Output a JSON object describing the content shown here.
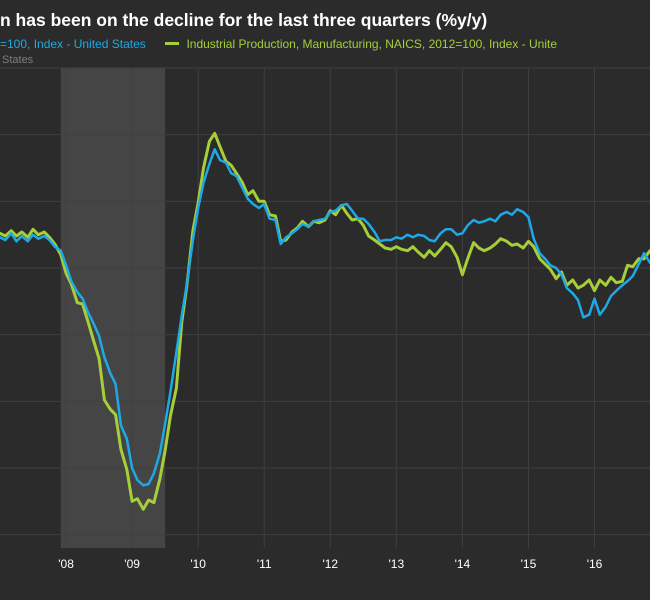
{
  "title": "n has been on the decline for the last three quarters (%y/y)",
  "legend": {
    "series1_label": "=100, Index - United States",
    "series2_label": "Industrial Production, Manufacturing, NAICS, 2012=100, Index - Unite",
    "series1_cont": "States"
  },
  "colors": {
    "background": "#2b2b2b",
    "recession": "#454545",
    "grid": "#3f3f3f",
    "series1": "#1ea9e6",
    "series2": "#a6ce39",
    "tick": "#ffffff"
  },
  "chart_data": {
    "type": "line",
    "recession_shading": {
      "start": 2007.92,
      "end": 2009.5
    },
    "xlim": [
      2007.0,
      2016.84
    ],
    "ylim": [
      -21,
      15
    ],
    "x_ticks": [
      {
        "x": 2008.0,
        "label": "'08"
      },
      {
        "x": 2009.0,
        "label": "'09"
      },
      {
        "x": 2010.0,
        "label": "'10"
      },
      {
        "x": 2011.0,
        "label": "'11"
      },
      {
        "x": 2012.0,
        "label": "'12"
      },
      {
        "x": 2013.0,
        "label": "'13"
      },
      {
        "x": 2014.0,
        "label": "'14"
      },
      {
        "x": 2015.0,
        "label": "'15"
      },
      {
        "x": 2016.0,
        "label": "'16"
      }
    ],
    "series": [
      {
        "values": [
          [
            2007.0,
            2.3
          ],
          [
            2007.08,
            2.1
          ],
          [
            2007.17,
            2.6
          ],
          [
            2007.25,
            2.0
          ],
          [
            2007.33,
            2.4
          ],
          [
            2007.42,
            2.0
          ],
          [
            2007.5,
            2.5
          ],
          [
            2007.58,
            2.2
          ],
          [
            2007.67,
            2.4
          ],
          [
            2007.75,
            2.1
          ],
          [
            2007.83,
            1.6
          ],
          [
            2007.92,
            1.3
          ],
          [
            2008.0,
            0.2
          ],
          [
            2008.08,
            -1.0
          ],
          [
            2008.17,
            -1.8
          ],
          [
            2008.25,
            -2.3
          ],
          [
            2008.33,
            -3.3
          ],
          [
            2008.42,
            -4.2
          ],
          [
            2008.5,
            -5.1
          ],
          [
            2008.58,
            -6.7
          ],
          [
            2008.67,
            -7.9
          ],
          [
            2008.75,
            -8.7
          ],
          [
            2008.83,
            -11.8
          ],
          [
            2008.92,
            -12.8
          ],
          [
            2009.0,
            -15.0
          ],
          [
            2009.08,
            -15.9
          ],
          [
            2009.17,
            -16.3
          ],
          [
            2009.25,
            -16.2
          ],
          [
            2009.33,
            -15.4
          ],
          [
            2009.42,
            -13.9
          ],
          [
            2009.5,
            -11.7
          ],
          [
            2009.58,
            -9.3
          ],
          [
            2009.67,
            -6.3
          ],
          [
            2009.75,
            -3.6
          ],
          [
            2009.83,
            -1.2
          ],
          [
            2009.92,
            2.1
          ],
          [
            2010.0,
            4.5
          ],
          [
            2010.08,
            6.4
          ],
          [
            2010.17,
            7.8
          ],
          [
            2010.25,
            8.9
          ],
          [
            2010.33,
            8.1
          ],
          [
            2010.42,
            7.9
          ],
          [
            2010.5,
            7.1
          ],
          [
            2010.58,
            6.9
          ],
          [
            2010.67,
            6.0
          ],
          [
            2010.75,
            5.2
          ],
          [
            2010.83,
            4.8
          ],
          [
            2010.92,
            4.5
          ],
          [
            2011.0,
            4.8
          ],
          [
            2011.08,
            3.7
          ],
          [
            2011.17,
            3.6
          ],
          [
            2011.25,
            1.8
          ],
          [
            2011.33,
            2.3
          ],
          [
            2011.42,
            2.6
          ],
          [
            2011.5,
            2.9
          ],
          [
            2011.58,
            3.3
          ],
          [
            2011.67,
            3.1
          ],
          [
            2011.75,
            3.5
          ],
          [
            2011.83,
            3.6
          ],
          [
            2011.92,
            3.7
          ],
          [
            2012.0,
            4.2
          ],
          [
            2012.08,
            4.3
          ],
          [
            2012.17,
            4.7
          ],
          [
            2012.25,
            4.8
          ],
          [
            2012.33,
            4.3
          ],
          [
            2012.42,
            3.7
          ],
          [
            2012.5,
            3.7
          ],
          [
            2012.58,
            3.3
          ],
          [
            2012.67,
            2.7
          ],
          [
            2012.75,
            2.0
          ],
          [
            2012.83,
            2.1
          ],
          [
            2012.92,
            2.1
          ],
          [
            2013.0,
            2.3
          ],
          [
            2013.08,
            2.2
          ],
          [
            2013.17,
            2.5
          ],
          [
            2013.25,
            2.3
          ],
          [
            2013.33,
            2.5
          ],
          [
            2013.42,
            2.4
          ],
          [
            2013.5,
            2.1
          ],
          [
            2013.58,
            2.0
          ],
          [
            2013.67,
            2.6
          ],
          [
            2013.75,
            2.9
          ],
          [
            2013.83,
            2.9
          ],
          [
            2013.92,
            2.5
          ],
          [
            2014.0,
            2.6
          ],
          [
            2014.08,
            3.2
          ],
          [
            2014.17,
            3.6
          ],
          [
            2014.25,
            3.4
          ],
          [
            2014.33,
            3.5
          ],
          [
            2014.42,
            3.7
          ],
          [
            2014.5,
            3.5
          ],
          [
            2014.58,
            4.0
          ],
          [
            2014.67,
            4.2
          ],
          [
            2014.75,
            4.0
          ],
          [
            2014.83,
            4.4
          ],
          [
            2014.92,
            4.2
          ],
          [
            2015.0,
            3.8
          ],
          [
            2015.08,
            2.2
          ],
          [
            2015.17,
            1.1
          ],
          [
            2015.25,
            0.7
          ],
          [
            2015.33,
            0.2
          ],
          [
            2015.42,
            0.0
          ],
          [
            2015.5,
            -0.5
          ],
          [
            2015.58,
            -1.5
          ],
          [
            2015.67,
            -1.9
          ],
          [
            2015.75,
            -2.4
          ],
          [
            2015.83,
            -3.7
          ],
          [
            2015.92,
            -3.5
          ],
          [
            2016.0,
            -2.3
          ],
          [
            2016.08,
            -3.5
          ],
          [
            2016.17,
            -2.9
          ],
          [
            2016.25,
            -2.1
          ],
          [
            2016.33,
            -1.7
          ],
          [
            2016.42,
            -1.3
          ],
          [
            2016.5,
            -1.0
          ],
          [
            2016.58,
            -0.6
          ],
          [
            2016.67,
            0.3
          ],
          [
            2016.75,
            1.1
          ],
          [
            2016.84,
            0.4
          ]
        ]
      },
      {
        "values": [
          [
            2007.0,
            2.6
          ],
          [
            2007.08,
            2.4
          ],
          [
            2007.17,
            2.8
          ],
          [
            2007.25,
            2.4
          ],
          [
            2007.33,
            2.7
          ],
          [
            2007.42,
            2.3
          ],
          [
            2007.5,
            2.9
          ],
          [
            2007.58,
            2.5
          ],
          [
            2007.67,
            2.7
          ],
          [
            2007.75,
            2.3
          ],
          [
            2007.83,
            1.8
          ],
          [
            2007.92,
            1.0
          ],
          [
            2008.0,
            -0.4
          ],
          [
            2008.08,
            -1.2
          ],
          [
            2008.17,
            -2.6
          ],
          [
            2008.25,
            -2.7
          ],
          [
            2008.33,
            -4.0
          ],
          [
            2008.42,
            -5.5
          ],
          [
            2008.5,
            -6.8
          ],
          [
            2008.58,
            -9.9
          ],
          [
            2008.67,
            -10.6
          ],
          [
            2008.75,
            -11.0
          ],
          [
            2008.83,
            -13.6
          ],
          [
            2008.92,
            -15.1
          ],
          [
            2009.0,
            -17.5
          ],
          [
            2009.08,
            -17.3
          ],
          [
            2009.17,
            -18.1
          ],
          [
            2009.25,
            -17.4
          ],
          [
            2009.33,
            -17.6
          ],
          [
            2009.42,
            -15.8
          ],
          [
            2009.5,
            -13.7
          ],
          [
            2009.58,
            -11.1
          ],
          [
            2009.67,
            -9.0
          ],
          [
            2009.75,
            -4.1
          ],
          [
            2009.83,
            -1.3
          ],
          [
            2009.92,
            2.8
          ],
          [
            2010.0,
            4.9
          ],
          [
            2010.08,
            7.5
          ],
          [
            2010.17,
            9.5
          ],
          [
            2010.25,
            10.1
          ],
          [
            2010.33,
            9.1
          ],
          [
            2010.42,
            8.0
          ],
          [
            2010.5,
            7.7
          ],
          [
            2010.58,
            7.1
          ],
          [
            2010.67,
            6.4
          ],
          [
            2010.75,
            5.5
          ],
          [
            2010.83,
            5.8
          ],
          [
            2010.92,
            5.0
          ],
          [
            2011.0,
            5.0
          ],
          [
            2011.08,
            4.0
          ],
          [
            2011.17,
            3.9
          ],
          [
            2011.25,
            2.0
          ],
          [
            2011.33,
            2.1
          ],
          [
            2011.42,
            2.7
          ],
          [
            2011.5,
            3.0
          ],
          [
            2011.58,
            3.5
          ],
          [
            2011.67,
            3.1
          ],
          [
            2011.75,
            3.5
          ],
          [
            2011.83,
            3.4
          ],
          [
            2011.92,
            3.6
          ],
          [
            2012.0,
            4.3
          ],
          [
            2012.08,
            4.0
          ],
          [
            2012.17,
            4.7
          ],
          [
            2012.25,
            4.1
          ],
          [
            2012.33,
            3.6
          ],
          [
            2012.42,
            3.7
          ],
          [
            2012.5,
            3.2
          ],
          [
            2012.58,
            2.4
          ],
          [
            2012.67,
            2.1
          ],
          [
            2012.75,
            1.8
          ],
          [
            2012.83,
            1.5
          ],
          [
            2012.92,
            1.4
          ],
          [
            2013.0,
            1.6
          ],
          [
            2013.08,
            1.4
          ],
          [
            2013.17,
            1.3
          ],
          [
            2013.25,
            1.6
          ],
          [
            2013.33,
            1.2
          ],
          [
            2013.42,
            0.8
          ],
          [
            2013.5,
            1.3
          ],
          [
            2013.58,
            0.9
          ],
          [
            2013.67,
            1.4
          ],
          [
            2013.75,
            1.9
          ],
          [
            2013.83,
            1.6
          ],
          [
            2013.92,
            0.8
          ],
          [
            2014.0,
            -0.5
          ],
          [
            2014.08,
            0.7
          ],
          [
            2014.17,
            1.9
          ],
          [
            2014.25,
            1.5
          ],
          [
            2014.33,
            1.3
          ],
          [
            2014.42,
            1.5
          ],
          [
            2014.5,
            1.8
          ],
          [
            2014.58,
            2.2
          ],
          [
            2014.67,
            2.0
          ],
          [
            2014.75,
            1.7
          ],
          [
            2014.83,
            1.8
          ],
          [
            2014.92,
            1.5
          ],
          [
            2015.0,
            2.0
          ],
          [
            2015.08,
            1.6
          ],
          [
            2015.17,
            0.7
          ],
          [
            2015.25,
            0.3
          ],
          [
            2015.33,
            -0.1
          ],
          [
            2015.42,
            -0.8
          ],
          [
            2015.5,
            -0.3
          ],
          [
            2015.58,
            -1.3
          ],
          [
            2015.67,
            -0.9
          ],
          [
            2015.75,
            -1.5
          ],
          [
            2015.83,
            -1.3
          ],
          [
            2015.92,
            -0.9
          ],
          [
            2016.0,
            -1.7
          ],
          [
            2016.08,
            -0.9
          ],
          [
            2016.17,
            -1.3
          ],
          [
            2016.25,
            -0.7
          ],
          [
            2016.33,
            -1.1
          ],
          [
            2016.42,
            -1.0
          ],
          [
            2016.5,
            0.2
          ],
          [
            2016.58,
            0.1
          ],
          [
            2016.67,
            0.7
          ],
          [
            2016.75,
            0.7
          ],
          [
            2016.84,
            1.3
          ]
        ]
      }
    ]
  }
}
